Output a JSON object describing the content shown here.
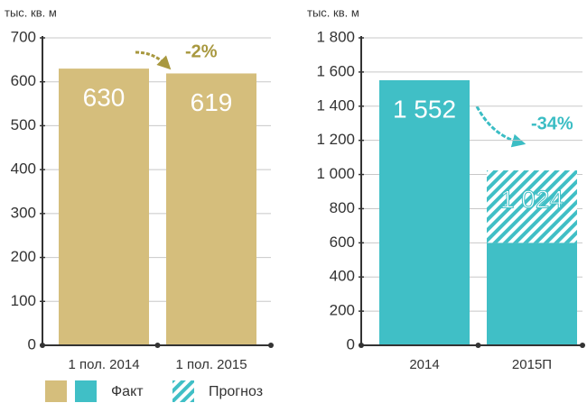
{
  "chart_data": [
    {
      "type": "bar",
      "ylabel": "тыс. кв. м",
      "categories": [
        "1 пол. 2014",
        "1 пол. 2015"
      ],
      "series": [
        {
          "color": "#d5be7c",
          "values": [
            630,
            619
          ]
        }
      ],
      "ylim": [
        0,
        700
      ],
      "yticks": [
        0,
        100,
        200,
        300,
        400,
        500,
        600,
        700
      ],
      "grid": true,
      "annotation": "-2%",
      "annotation_color": "#a8983f"
    },
    {
      "type": "bar",
      "ylabel": "тыс. кв. м",
      "categories": [
        "2014",
        "2015П"
      ],
      "series": [
        {
          "color": "#40bfc6",
          "values": [
            1552,
            600
          ]
        },
        {
          "color": "#40bfc6",
          "hatch": true,
          "values": [
            null,
            424
          ]
        }
      ],
      "totals": [
        1552,
        1024
      ],
      "total_labels": [
        "1 552",
        "1 024"
      ],
      "ylim": [
        0,
        1800
      ],
      "yticks": [
        0,
        200,
        400,
        600,
        800,
        {
          "value": 1000,
          "label": "1 000"
        },
        {
          "value": 1200,
          "label": "1 200"
        },
        {
          "value": 1400,
          "label": "1 400"
        },
        {
          "value": 1600,
          "label": "1 600"
        },
        {
          "value": 1800,
          "label": "1 800"
        }
      ],
      "grid": true,
      "annotation": "-34%",
      "annotation_color": "#3bbdc4"
    }
  ],
  "legend": [
    {
      "label": "Факт",
      "colors": [
        "#d5be7c",
        "#40bfc6"
      ]
    },
    {
      "label": "Прогноз",
      "colors": [
        "#40bfc6"
      ],
      "hatch": true
    }
  ]
}
